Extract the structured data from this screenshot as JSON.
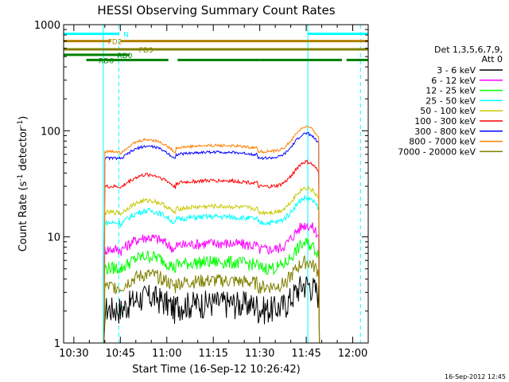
{
  "chart_data": {
    "type": "line",
    "title": "HESSI Observing Summary Count Rates",
    "xlabel": "Start Time (16-Sep-12 10:26:42)",
    "ylabel_main": "Count Rate (s",
    "ylabel_sup1": "-1",
    "ylabel_mid": " detector",
    "ylabel_sup2": "-1",
    "ylabel_end": ")",
    "y_scale": "log",
    "ylim": [
      1,
      1000
    ],
    "xlim_minutes": [
      -33.3,
      65
    ],
    "x_ticks": [
      {
        "m": -30,
        "label": "10:30"
      },
      {
        "m": -15,
        "label": "10:45"
      },
      {
        "m": 0,
        "label": "11:00"
      },
      {
        "m": 15,
        "label": "11:15"
      },
      {
        "m": 30,
        "label": "11:30"
      },
      {
        "m": 45,
        "label": "11:45"
      },
      {
        "m": 60,
        "label": "12:00"
      }
    ],
    "y_ticks": [
      {
        "v": 1,
        "label": "1"
      },
      {
        "v": 10,
        "label": "10"
      },
      {
        "v": 100,
        "label": "100"
      },
      {
        "v": 1000,
        "label": "1000"
      }
    ],
    "legend_header": [
      "Det 1,3,5,6,7,9,",
      "Att 0"
    ],
    "legend_placement": "right",
    "footer_date": "16-Sep-2012 12:45",
    "series": [
      {
        "name": "3 - 6 keV",
        "color": "#000000",
        "level": 2.5,
        "noise": 0.3,
        "segments": [
          [
            -20.5,
            -15.5
          ],
          [
            -15.5,
            3
          ],
          [
            3.5,
            29
          ],
          [
            29,
            45.5
          ],
          [
            45.5,
            49.5
          ]
        ],
        "seg_levels": [
          0.5,
          0.9,
          0.8,
          0.9,
          0.7
        ]
      },
      {
        "name": "6 - 12 keV",
        "color": "#ff00ff",
        "level": 9,
        "noise": 0.12
      },
      {
        "name": "12 - 25 keV",
        "color": "#00ff00",
        "level": 6,
        "noise": 0.14
      },
      {
        "name": "25 - 50 keV",
        "color": "#00ffff",
        "level": 16,
        "noise": 0.06
      },
      {
        "name": "50 - 100 keV",
        "color": "#c8c800",
        "level": 20,
        "noise": 0.05
      },
      {
        "name": "100 - 300 keV",
        "color": "#ff0000",
        "level": 35,
        "noise": 0.04
      },
      {
        "name": "300 - 800 keV",
        "color": "#0000ff",
        "level": 65,
        "noise": 0.03
      },
      {
        "name": "800 - 7000 keV",
        "color": "#ff8000",
        "level": 75,
        "noise": 0.03
      },
      {
        "name": "7000 - 20000 keV",
        "color": "#808000",
        "level": 4,
        "noise": 0.15
      }
    ],
    "flag_bars": [
      {
        "label": "N",
        "color": "#00ffff",
        "y": 820,
        "segments": [
          [
            -33.3,
            -15.5
          ],
          [
            45.5,
            65
          ]
        ],
        "label_m": -14,
        "label_color": "#00ffff"
      },
      {
        "label": "FD2",
        "color": "#b08000",
        "y": 700,
        "segments": [
          [
            -33.3,
            -18
          ],
          [
            -15,
            65
          ]
        ],
        "label_m": -19,
        "label_color": "#b08000"
      },
      {
        "label": "FD3",
        "color": "#808000",
        "y": 585,
        "segments": [
          [
            -33.3,
            65
          ]
        ],
        "label_m": -9,
        "label_color": "#808000"
      },
      {
        "label": "RD0",
        "color": "#008000",
        "y": 520,
        "segments": [
          [
            -33.3,
            -12
          ]
        ],
        "label_m": -16,
        "label_color": "#008000"
      },
      {
        "label": "RD6",
        "color": "#008000",
        "y": 465,
        "segments": [
          [
            -26,
            0.5
          ],
          [
            3.5,
            30
          ],
          [
            30,
            56.5
          ],
          [
            58,
            65
          ]
        ],
        "label_m": -22,
        "label_color": "#008000"
      }
    ],
    "vlines": [
      {
        "m": -20.5,
        "color": "#00ffff",
        "style": "solid"
      },
      {
        "m": -15.5,
        "color": "#00ffff",
        "style": "dashed"
      },
      {
        "m": 45.5,
        "color": "#00ffff",
        "style": "solid"
      },
      {
        "m": 62.5,
        "color": "#00ffff",
        "style": "dashed"
      }
    ]
  }
}
